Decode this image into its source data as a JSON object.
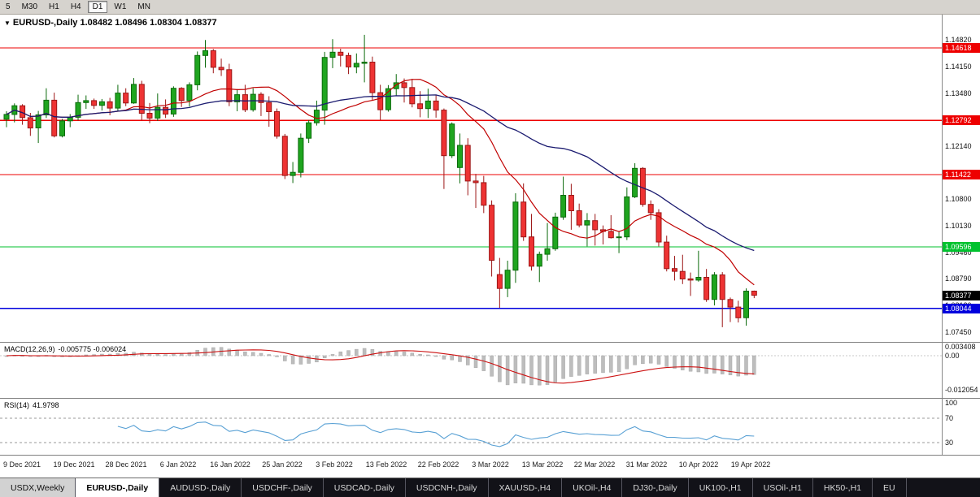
{
  "colors": {
    "bull": "#1fa51f",
    "bull_border": "#0b6a0b",
    "bear": "#ee3333",
    "bear_border": "#9c1616",
    "ma_fast": "#c00000",
    "ma_slow": "#1b1b70",
    "hline_red": "#ee0000",
    "hline_green": "#00c22e",
    "hline_blue": "#0000dd",
    "current_badge_bg": "#000000",
    "macd_hist": "#bdbdbd",
    "macd_signal": "#cc1111",
    "rsi_line": "#58a0d4"
  },
  "toolbar": {
    "timeframes": [
      {
        "label": "5",
        "active": false
      },
      {
        "label": "M30",
        "active": false
      },
      {
        "label": "H1",
        "active": false
      },
      {
        "label": "H4",
        "active": false
      },
      {
        "label": "D1",
        "active": true
      },
      {
        "label": "W1",
        "active": false
      },
      {
        "label": "MN",
        "active": false
      }
    ]
  },
  "quote": {
    "symbol": "EURUSD-,Daily",
    "ohlc": "1.08482 1.08496 1.08304 1.08377"
  },
  "main_chart": {
    "y_axis_labels": [
      "1.14820",
      "1.14150",
      "1.13480",
      "1.12810",
      "1.12140",
      "1.11470",
      "1.10800",
      "1.10130",
      "1.09460",
      "1.08790",
      "1.08120",
      "1.07450"
    ],
    "hlines": [
      {
        "label": "1.14618",
        "price": 1.14618,
        "color": "#ee0000"
      },
      {
        "label": "1.12792",
        "price": 1.12792,
        "color": "#ee0000"
      },
      {
        "label": "1.11422",
        "price": 1.11422,
        "color": "#ee0000"
      },
      {
        "label": "1.09596",
        "price": 1.09596,
        "color": "#00c22e"
      },
      {
        "label": "1.08044",
        "price": 1.08044,
        "color": "#0000dd"
      }
    ],
    "current_price": {
      "label": "1.08377",
      "price": 1.08377
    }
  },
  "chart_data": {
    "type": "candlestick",
    "symbol": "EURUSD-",
    "timeframe": "Daily",
    "title": "EURUSD-,Daily",
    "price_range": [
      1.072,
      1.1546
    ],
    "x_labels": [
      "9 Dec 2021",
      "19 Dec 2021",
      "28 Dec 2021",
      "6 Jan 2022",
      "16 Jan 2022",
      "25 Jan 2022",
      "3 Feb 2022",
      "13 Feb 2022",
      "22 Feb 2022",
      "3 Mar 2022",
      "13 Mar 2022",
      "22 Mar 2022",
      "31 Mar 2022",
      "10 Apr 2022",
      "19 Apr 2022"
    ],
    "overlays": [
      {
        "name": "ma-fast",
        "period": 13,
        "color": "#c00000"
      },
      {
        "name": "ma-slow",
        "period": 34,
        "color": "#1b1b70"
      }
    ],
    "ohlc": [
      [
        1.1282,
        1.1302,
        1.1262,
        1.1294
      ],
      [
        1.1294,
        1.1322,
        1.1274,
        1.1316
      ],
      [
        1.1316,
        1.132,
        1.1268,
        1.1286
      ],
      [
        1.1286,
        1.1298,
        1.124,
        1.126
      ],
      [
        1.126,
        1.1303,
        1.1222,
        1.1293
      ],
      [
        1.1293,
        1.136,
        1.1285,
        1.133
      ],
      [
        1.133,
        1.1349,
        1.1236,
        1.124
      ],
      [
        1.124,
        1.1283,
        1.1236,
        1.1278
      ],
      [
        1.1278,
        1.1295,
        1.1262,
        1.1287
      ],
      [
        1.1287,
        1.1344,
        1.1279,
        1.1324
      ],
      [
        1.1324,
        1.1342,
        1.1308,
        1.1329
      ],
      [
        1.1329,
        1.1334,
        1.1308,
        1.1317
      ],
      [
        1.1317,
        1.1333,
        1.1304,
        1.1326
      ],
      [
        1.1326,
        1.1336,
        1.1292,
        1.131
      ],
      [
        1.131,
        1.1369,
        1.1303,
        1.1348
      ],
      [
        1.1348,
        1.136,
        1.1315,
        1.1323
      ],
      [
        1.1323,
        1.1386,
        1.1321,
        1.137
      ],
      [
        1.137,
        1.1379,
        1.1279,
        1.1297
      ],
      [
        1.1297,
        1.1323,
        1.1272,
        1.1285
      ],
      [
        1.1285,
        1.1347,
        1.1278,
        1.1312
      ],
      [
        1.1312,
        1.1332,
        1.1285,
        1.1295
      ],
      [
        1.1295,
        1.1365,
        1.1288,
        1.136
      ],
      [
        1.136,
        1.1363,
        1.1313,
        1.1329
      ],
      [
        1.1329,
        1.1375,
        1.1314,
        1.1369
      ],
      [
        1.1369,
        1.1453,
        1.1355,
        1.1443
      ],
      [
        1.1443,
        1.1482,
        1.1412,
        1.1455
      ],
      [
        1.1455,
        1.1459,
        1.1398,
        1.1413
      ],
      [
        1.1413,
        1.1435,
        1.1391,
        1.1407
      ],
      [
        1.1407,
        1.1422,
        1.1315,
        1.1326
      ],
      [
        1.1326,
        1.1358,
        1.1302,
        1.1344
      ],
      [
        1.1344,
        1.1369,
        1.13,
        1.1306
      ],
      [
        1.1306,
        1.136,
        1.1301,
        1.1345
      ],
      [
        1.1345,
        1.135,
        1.129,
        1.1324
      ],
      [
        1.1324,
        1.134,
        1.1263,
        1.1301
      ],
      [
        1.1301,
        1.1309,
        1.1233,
        1.1239
      ],
      [
        1.1239,
        1.1245,
        1.1131,
        1.114
      ],
      [
        1.114,
        1.1174,
        1.1121,
        1.1148
      ],
      [
        1.1148,
        1.1246,
        1.1135,
        1.1234
      ],
      [
        1.1234,
        1.128,
        1.1222,
        1.1273
      ],
      [
        1.1273,
        1.1329,
        1.1266,
        1.1305
      ],
      [
        1.1305,
        1.1452,
        1.1268,
        1.1438
      ],
      [
        1.1438,
        1.1484,
        1.1411,
        1.1451
      ],
      [
        1.1451,
        1.146,
        1.1415,
        1.1443
      ],
      [
        1.1443,
        1.145,
        1.1396,
        1.1414
      ],
      [
        1.1414,
        1.1448,
        1.1398,
        1.1423
      ],
      [
        1.1423,
        1.1495,
        1.1375,
        1.1426
      ],
      [
        1.1426,
        1.144,
        1.133,
        1.1349
      ],
      [
        1.1349,
        1.1369,
        1.128,
        1.1306
      ],
      [
        1.1306,
        1.1368,
        1.1301,
        1.1359
      ],
      [
        1.1359,
        1.1396,
        1.1341,
        1.1374
      ],
      [
        1.1374,
        1.1385,
        1.1324,
        1.1362
      ],
      [
        1.1362,
        1.1384,
        1.1312,
        1.1321
      ],
      [
        1.1321,
        1.1353,
        1.1287,
        1.1309
      ],
      [
        1.1309,
        1.1359,
        1.1285,
        1.1328
      ],
      [
        1.1328,
        1.1342,
        1.1286,
        1.1305
      ],
      [
        1.1305,
        1.1309,
        1.1106,
        1.119
      ],
      [
        1.119,
        1.1274,
        1.1184,
        1.127
      ],
      [
        1.116,
        1.1246,
        1.112,
        1.1216
      ],
      [
        1.1216,
        1.1234,
        1.109,
        1.1126
      ],
      [
        1.1126,
        1.1144,
        1.1058,
        1.1122
      ],
      [
        1.1122,
        1.1139,
        1.1045,
        1.1065
      ],
      [
        1.1065,
        1.1077,
        1.0885,
        1.0926
      ],
      [
        1.089,
        1.0932,
        1.0806,
        1.0855
      ],
      [
        1.0855,
        1.0925,
        1.0833,
        1.0901
      ],
      [
        1.0901,
        1.1095,
        1.0869,
        1.1073
      ],
      [
        1.1073,
        1.112,
        1.0975,
        1.0985
      ],
      [
        1.0985,
        1.1043,
        1.09,
        1.0911
      ],
      [
        1.0911,
        1.0948,
        1.0871,
        1.0941
      ],
      [
        1.0941,
        1.102,
        1.0925,
        1.0955
      ],
      [
        1.0955,
        1.1046,
        1.095,
        1.1035
      ],
      [
        1.1035,
        1.1137,
        1.1028,
        1.109
      ],
      [
        1.109,
        1.1119,
        1.1003,
        1.1051
      ],
      [
        1.1051,
        1.1069,
        1.1009,
        1.1015
      ],
      [
        1.1015,
        1.1045,
        1.0961,
        1.1026
      ],
      [
        1.1026,
        1.1043,
        1.0963,
        1.1003
      ],
      [
        1.1003,
        1.1014,
        1.0966,
        1.0999
      ],
      [
        1.0999,
        1.104,
        1.0981,
        1.0983
      ],
      [
        1.0983,
        1.1,
        1.0944,
        1.0985
      ],
      [
        1.0985,
        1.111,
        1.0977,
        1.1086
      ],
      [
        1.1086,
        1.1171,
        1.1083,
        1.1158
      ],
      [
        1.1158,
        1.1161,
        1.1061,
        1.1067
      ],
      [
        1.1067,
        1.1077,
        1.1028,
        1.1046
      ],
      [
        1.1046,
        1.1055,
        1.0961,
        1.0972
      ],
      [
        1.0972,
        1.0988,
        1.0898,
        1.0905
      ],
      [
        1.0905,
        1.0937,
        1.0875,
        1.0898
      ],
      [
        1.0898,
        1.094,
        1.0866,
        1.0879
      ],
      [
        1.0879,
        1.0895,
        1.0836,
        1.0876
      ],
      [
        1.0876,
        1.095,
        1.0872,
        1.0883
      ],
      [
        1.0883,
        1.0904,
        1.0821,
        1.0827
      ],
      [
        1.0827,
        1.0896,
        1.0812,
        1.0889
      ],
      [
        1.0889,
        1.0896,
        1.0757,
        1.0827
      ],
      [
        1.0827,
        1.0832,
        1.077,
        1.0808
      ],
      [
        1.0808,
        1.0824,
        1.0769,
        1.0781
      ],
      [
        1.0781,
        1.0855,
        1.0761,
        1.0848
      ],
      [
        1.08482,
        1.08496,
        1.08304,
        1.08377
      ]
    ]
  },
  "macd": {
    "title": "MACD(12,26,9)",
    "values": "-0.005775 -0.006024",
    "params": {
      "fast": 12,
      "slow": 26,
      "signal": 9
    },
    "axis": [
      {
        "text": "0.003408",
        "v": 0.003408
      },
      {
        "text": "0.00",
        "v": 0
      },
      {
        "text": "-0.012054",
        "v": -0.012054
      }
    ]
  },
  "rsi": {
    "title": "RSI(14)",
    "value": "41.9798",
    "period": 14,
    "levels": [
      70,
      30
    ],
    "axis": [
      {
        "text": "100",
        "v": 100
      },
      {
        "text": "70",
        "v": 70
      },
      {
        "text": "30",
        "v": 30
      }
    ]
  },
  "tabs": [
    {
      "label": "USDX,Weekly",
      "style": "light"
    },
    {
      "label": "EURUSD-,Daily",
      "style": "selected"
    },
    {
      "label": "AUDUSD-,Daily",
      "style": "dark"
    },
    {
      "label": "USDCHF-,Daily",
      "style": "dark"
    },
    {
      "label": "USDCAD-,Daily",
      "style": "dark"
    },
    {
      "label": "USDCNH-,Daily",
      "style": "dark"
    },
    {
      "label": "XAUUSD-,H4",
      "style": "dark"
    },
    {
      "label": "UKOil-,H4",
      "style": "dark"
    },
    {
      "label": "DJ30-,Daily",
      "style": "dark"
    },
    {
      "label": "UK100-,H1",
      "style": "dark"
    },
    {
      "label": "USOil-,H1",
      "style": "dark"
    },
    {
      "label": "HK50-,H1",
      "style": "dark"
    },
    {
      "label": "EU",
      "style": "dark"
    }
  ]
}
